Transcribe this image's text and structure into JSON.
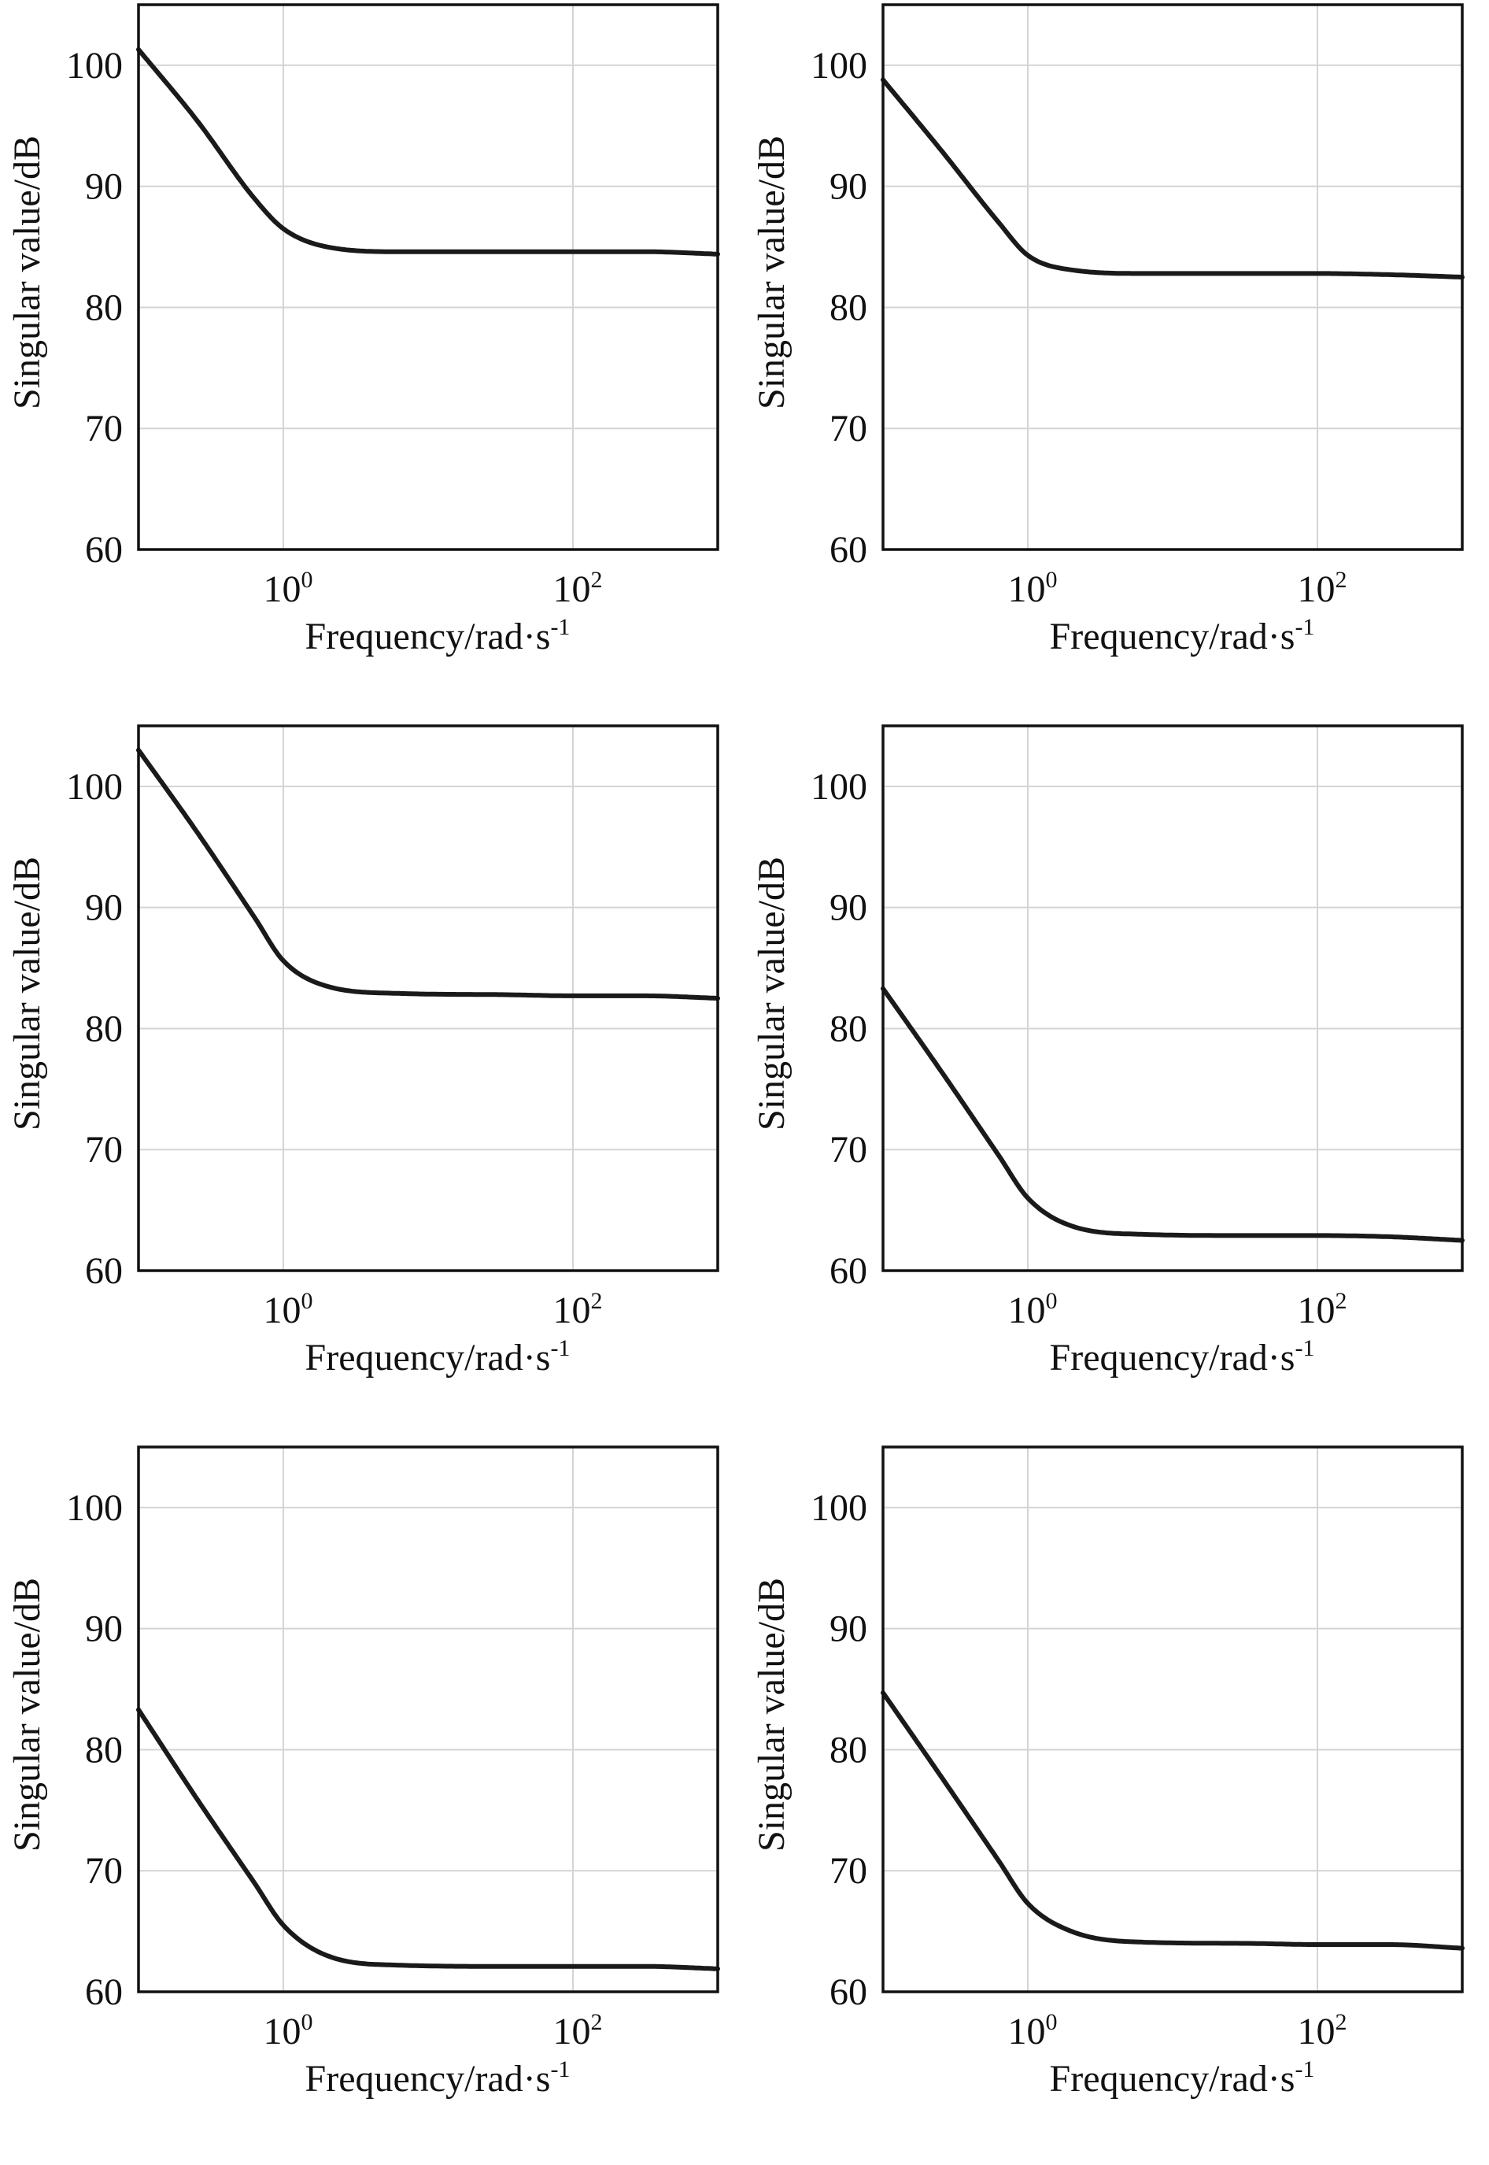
{
  "chart_data": [
    {
      "type": "line",
      "xlabel_base": "Frequency/rad·s",
      "xlabel_sup": "-1",
      "ylabel": "Singular value/dB",
      "xscale": "log",
      "xlim_log10": [
        -1,
        3
      ],
      "ylim": [
        60,
        105
      ],
      "yticks": [
        60,
        70,
        80,
        90,
        100
      ],
      "xticks": [
        {
          "base": "10",
          "exp": "0",
          "log10": 0
        },
        {
          "base": "10",
          "exp": "2",
          "log10": 2
        }
      ],
      "grid": true,
      "series": [
        {
          "name": "singular value",
          "x_log10": [
            -1,
            -0.6,
            -0.2,
            0,
            0.3,
            0.8,
            1.5,
            2,
            2.5,
            3
          ],
          "y": [
            101.3,
            95.5,
            89.0,
            86.5,
            85.0,
            84.6,
            84.6,
            84.6,
            84.6,
            84.4
          ]
        }
      ]
    },
    {
      "type": "line",
      "xlabel_base": "Frequency/rad·s",
      "xlabel_sup": "-1",
      "ylabel": "Singular value/dB",
      "xscale": "log",
      "xlim_log10": [
        -1,
        3
      ],
      "ylim": [
        60,
        105
      ],
      "yticks": [
        60,
        70,
        80,
        90,
        100
      ],
      "xticks": [
        {
          "base": "10",
          "exp": "0",
          "log10": 0
        },
        {
          "base": "10",
          "exp": "2",
          "log10": 2
        }
      ],
      "grid": true,
      "series": [
        {
          "name": "singular value",
          "x_log10": [
            -1,
            -0.6,
            -0.2,
            0,
            0.3,
            0.8,
            1.5,
            2,
            2.5,
            3
          ],
          "y": [
            98.8,
            93.0,
            87.0,
            84.3,
            83.1,
            82.8,
            82.8,
            82.8,
            82.7,
            82.5
          ]
        }
      ]
    },
    {
      "type": "line",
      "xlabel_base": "Frequency/rad·s",
      "xlabel_sup": "-1",
      "ylabel": "Singular value/dB",
      "xscale": "log",
      "xlim_log10": [
        -1,
        3
      ],
      "ylim": [
        60,
        105
      ],
      "yticks": [
        60,
        70,
        80,
        90,
        100
      ],
      "xticks": [
        {
          "base": "10",
          "exp": "0",
          "log10": 0
        },
        {
          "base": "10",
          "exp": "2",
          "log10": 2
        }
      ],
      "grid": true,
      "series": [
        {
          "name": "singular value",
          "x_log10": [
            -1,
            -0.6,
            -0.2,
            0,
            0.3,
            0.8,
            1.5,
            2,
            2.5,
            3
          ],
          "y": [
            103.0,
            96.3,
            89.2,
            85.6,
            83.5,
            82.9,
            82.8,
            82.7,
            82.7,
            82.5
          ]
        }
      ]
    },
    {
      "type": "line",
      "xlabel_base": "Frequency/rad·s",
      "xlabel_sup": "-1",
      "ylabel": "Singular value/dB",
      "xscale": "log",
      "xlim_log10": [
        -1,
        3
      ],
      "ylim": [
        60,
        105
      ],
      "yticks": [
        60,
        70,
        80,
        90,
        100
      ],
      "xticks": [
        {
          "base": "10",
          "exp": "0",
          "log10": 0
        },
        {
          "base": "10",
          "exp": "2",
          "log10": 2
        }
      ],
      "grid": true,
      "series": [
        {
          "name": "singular value",
          "x_log10": [
            -1,
            -0.6,
            -0.2,
            0,
            0.3,
            0.8,
            1.5,
            2,
            2.5,
            3
          ],
          "y": [
            83.3,
            76.5,
            69.5,
            66.0,
            63.7,
            63.0,
            62.9,
            62.9,
            62.8,
            62.5
          ]
        }
      ]
    },
    {
      "type": "line",
      "xlabel_base": "Frequency/rad·s",
      "xlabel_sup": "-1",
      "ylabel": "Singular value/dB",
      "xscale": "log",
      "xlim_log10": [
        -1,
        3
      ],
      "ylim": [
        60,
        105
      ],
      "yticks": [
        60,
        70,
        80,
        90,
        100
      ],
      "xticks": [
        {
          "base": "10",
          "exp": "0",
          "log10": 0
        },
        {
          "base": "10",
          "exp": "2",
          "log10": 2
        }
      ],
      "grid": true,
      "series": [
        {
          "name": "singular value",
          "x_log10": [
            -1,
            -0.6,
            -0.2,
            0,
            0.3,
            0.8,
            1.5,
            2,
            2.5,
            3
          ],
          "y": [
            83.3,
            76.0,
            69.0,
            65.5,
            63.0,
            62.2,
            62.1,
            62.1,
            62.1,
            61.9
          ]
        }
      ]
    },
    {
      "type": "line",
      "xlabel_base": "Frequency/rad·s",
      "xlabel_sup": "-1",
      "ylabel": "Singular value/dB",
      "xscale": "log",
      "xlim_log10": [
        -1,
        3
      ],
      "ylim": [
        60,
        105
      ],
      "yticks": [
        60,
        70,
        80,
        90,
        100
      ],
      "xticks": [
        {
          "base": "10",
          "exp": "0",
          "log10": 0
        },
        {
          "base": "10",
          "exp": "2",
          "log10": 2
        }
      ],
      "grid": true,
      "series": [
        {
          "name": "singular value",
          "x_log10": [
            -1,
            -0.6,
            -0.2,
            0,
            0.3,
            0.8,
            1.5,
            2,
            2.5,
            3
          ],
          "y": [
            84.7,
            77.8,
            70.8,
            67.3,
            65.0,
            64.1,
            64.0,
            63.9,
            63.9,
            63.6
          ]
        }
      ]
    }
  ]
}
